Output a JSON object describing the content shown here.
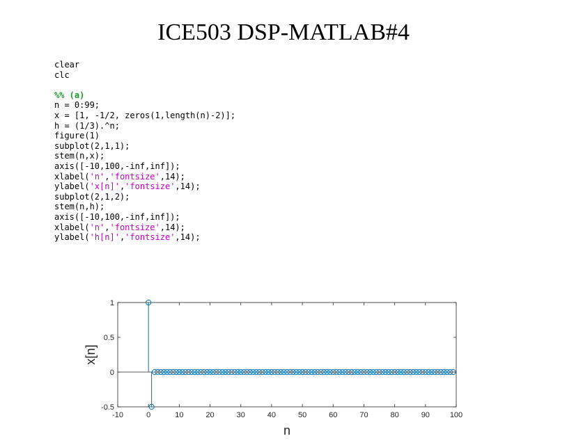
{
  "slide": {
    "title": "ICE503 DSP-MATLAB#4"
  },
  "code": {
    "lines": [
      [
        {
          "t": "clear",
          "k": "p"
        }
      ],
      [
        {
          "t": "clc",
          "k": "p"
        }
      ],
      [],
      [
        {
          "t": "%% (a)",
          "k": "c"
        }
      ],
      [
        {
          "t": "n = 0:99;",
          "k": "p"
        }
      ],
      [
        {
          "t": "x = [1, -1/2, zeros(1,length(n)-2)];",
          "k": "p"
        }
      ],
      [
        {
          "t": "h = (1/3).^n;",
          "k": "p"
        }
      ],
      [
        {
          "t": "figure(1)",
          "k": "p"
        }
      ],
      [
        {
          "t": "subplot(2,1,1);",
          "k": "p"
        }
      ],
      [
        {
          "t": "stem(n,x);",
          "k": "p"
        }
      ],
      [
        {
          "t": "axis([-10,100,-inf,inf]);",
          "k": "p"
        }
      ],
      [
        {
          "t": "xlabel(",
          "k": "p"
        },
        {
          "t": "'n'",
          "k": "s"
        },
        {
          "t": ",",
          "k": "p"
        },
        {
          "t": "'fontsize'",
          "k": "s"
        },
        {
          "t": ",14);",
          "k": "p"
        }
      ],
      [
        {
          "t": "ylabel(",
          "k": "p"
        },
        {
          "t": "'x[n]'",
          "k": "s"
        },
        {
          "t": ",",
          "k": "p"
        },
        {
          "t": "'fontsize'",
          "k": "s"
        },
        {
          "t": ",14);",
          "k": "p"
        }
      ],
      [
        {
          "t": "subplot(2,1,2);",
          "k": "p"
        }
      ],
      [
        {
          "t": "stem(n,h);",
          "k": "p"
        }
      ],
      [
        {
          "t": "axis([-10,100,-inf,inf]);",
          "k": "p"
        }
      ],
      [
        {
          "t": "xlabel(",
          "k": "p"
        },
        {
          "t": "'n'",
          "k": "s"
        },
        {
          "t": ",",
          "k": "p"
        },
        {
          "t": "'fontsize'",
          "k": "s"
        },
        {
          "t": ",14);",
          "k": "p"
        }
      ],
      [
        {
          "t": "ylabel(",
          "k": "p"
        },
        {
          "t": "'h[n]'",
          "k": "s"
        },
        {
          "t": ",",
          "k": "p"
        },
        {
          "t": "'fontsize'",
          "k": "s"
        },
        {
          "t": ",14);",
          "k": "p"
        }
      ]
    ]
  },
  "colors": {
    "stem": "#0072bd",
    "comment": "#1a9a2e",
    "string": "#c400c4"
  },
  "chart_data": {
    "type": "stem",
    "title": "",
    "xlabel": "n",
    "ylabel": "x[n]",
    "xlim": [
      -10,
      100
    ],
    "ylim": [
      -0.5,
      1
    ],
    "xticks": [
      "-10",
      "0",
      "10",
      "20",
      "30",
      "40",
      "50",
      "60",
      "70",
      "80",
      "90",
      "100"
    ],
    "yticks": [
      "-0.5",
      "0",
      "0.5",
      "1"
    ],
    "grid": false,
    "series": [
      {
        "x_range": [
          0,
          99
        ],
        "values_nonzero": [
          {
            "x": 0,
            "y": 1
          },
          {
            "x": 1,
            "y": -0.5
          }
        ],
        "default_value": 0
      }
    ]
  }
}
